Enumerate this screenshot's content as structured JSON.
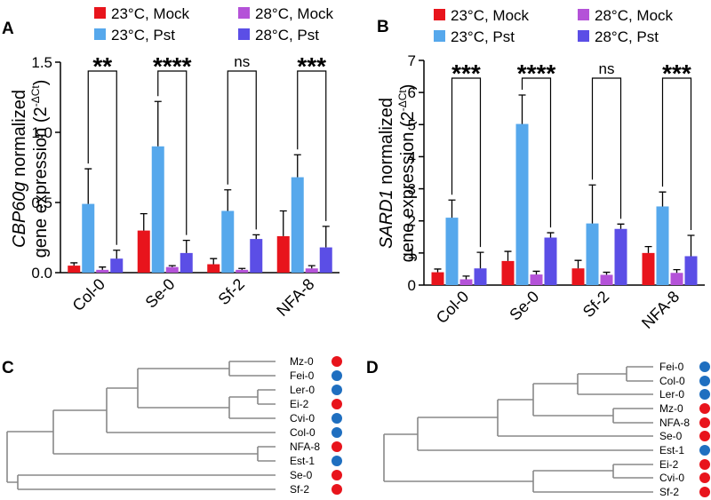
{
  "chart_data": [
    {
      "type": "bar",
      "panel_label": "A",
      "ylabel": {
        "italic": "CBP60g",
        "line1": " normalized",
        "line2": "gene  expression  (2",
        "sup": "-ΔCt",
        "close": ")"
      },
      "categories": [
        "Col-0",
        "Se-0",
        "Sf-2",
        "NFA-8"
      ],
      "series": [
        {
          "name": "23°C, Mock",
          "color": "#e8141c",
          "values": [
            0.05,
            0.3,
            0.06,
            0.26
          ],
          "errors": [
            0.02,
            0.12,
            0.04,
            0.18
          ]
        },
        {
          "name": "23°C, Pst",
          "color": "#56a8ec",
          "values": [
            0.49,
            0.9,
            0.44,
            0.68
          ],
          "errors": [
            0.25,
            0.32,
            0.15,
            0.16
          ]
        },
        {
          "name": "28°C, Mock",
          "color": "#b452d8",
          "values": [
            0.02,
            0.04,
            0.02,
            0.03
          ],
          "errors": [
            0.02,
            0.01,
            0.01,
            0.02
          ]
        },
        {
          "name": "28°C, Pst",
          "color": "#5b4ee6",
          "values": [
            0.1,
            0.14,
            0.24,
            0.18
          ],
          "errors": [
            0.06,
            0.09,
            0.03,
            0.15
          ]
        }
      ],
      "annotations": [
        "**",
        "****",
        "ns",
        "***"
      ],
      "ylim": [
        0,
        1.5
      ],
      "yticks": [
        {
          "value": 0,
          "label": "0.0"
        },
        0.5,
        {
          "value": 1,
          "label": "1.0"
        },
        1.5
      ]
    },
    {
      "type": "bar",
      "panel_label": "B",
      "ylabel": {
        "italic": "SARD1",
        "line1": " normalized",
        "line2": "gene  expression  (2",
        "sup": "-ΔCt",
        "close": ")"
      },
      "categories": [
        "Col-0",
        "Se-0",
        "Sf-2",
        "NFA-8"
      ],
      "series": [
        {
          "name": "23°C, Mock",
          "color": "#e8141c",
          "values": [
            0.4,
            0.75,
            0.52,
            1.0
          ],
          "errors": [
            0.1,
            0.3,
            0.25,
            0.2
          ]
        },
        {
          "name": "23°C, Pst",
          "color": "#56a8ec",
          "values": [
            2.1,
            5.02,
            1.92,
            2.45
          ],
          "errors": [
            0.55,
            0.9,
            1.2,
            0.45
          ]
        },
        {
          "name": "28°C, Mock",
          "color": "#b452d8",
          "values": [
            0.18,
            0.33,
            0.32,
            0.38
          ],
          "errors": [
            0.1,
            0.1,
            0.08,
            0.1
          ]
        },
        {
          "name": "28°C, Pst",
          "color": "#5b4ee6",
          "values": [
            0.52,
            1.48,
            1.75,
            0.9
          ],
          "errors": [
            0.5,
            0.15,
            0.15,
            0.65
          ]
        }
      ],
      "annotations": [
        "***",
        "****",
        "ns",
        "***"
      ],
      "ylim": [
        0,
        7
      ],
      "yticks": [
        0,
        1,
        2,
        3,
        4,
        5,
        6,
        7
      ]
    }
  ],
  "dendrograms": [
    {
      "panel_label": "C",
      "leaves": [
        {
          "label": "Mz-0",
          "color": "#e8141c"
        },
        {
          "label": "Fei-0",
          "color": "#1f6fc0"
        },
        {
          "label": "Ler-0",
          "color": "#1f6fc0"
        },
        {
          "label": "Ei-2",
          "color": "#e8141c"
        },
        {
          "label": "Cvi-0",
          "color": "#1f6fc0"
        },
        {
          "label": "Col-0",
          "color": "#1f6fc0"
        },
        {
          "label": "NFA-8",
          "color": "#e8141c"
        },
        {
          "label": "Est-1",
          "color": "#1f6fc0"
        },
        {
          "label": "Se-0",
          "color": "#e8141c"
        },
        {
          "label": "Sf-2",
          "color": "#e8141c"
        }
      ]
    },
    {
      "panel_label": "D",
      "leaves": [
        {
          "label": "Fei-0",
          "color": "#1f6fc0"
        },
        {
          "label": "Col-0",
          "color": "#1f6fc0"
        },
        {
          "label": "Ler-0",
          "color": "#1f6fc0"
        },
        {
          "label": "Mz-0",
          "color": "#e8141c"
        },
        {
          "label": "NFA-8",
          "color": "#e8141c"
        },
        {
          "label": "Se-0",
          "color": "#e8141c"
        },
        {
          "label": "Est-1",
          "color": "#1f6fc0"
        },
        {
          "label": "Ei-2",
          "color": "#e8141c"
        },
        {
          "label": "Cvi-0",
          "color": "#e8141c"
        },
        {
          "label": "Sf-2",
          "color": "#e8141c"
        }
      ]
    }
  ]
}
